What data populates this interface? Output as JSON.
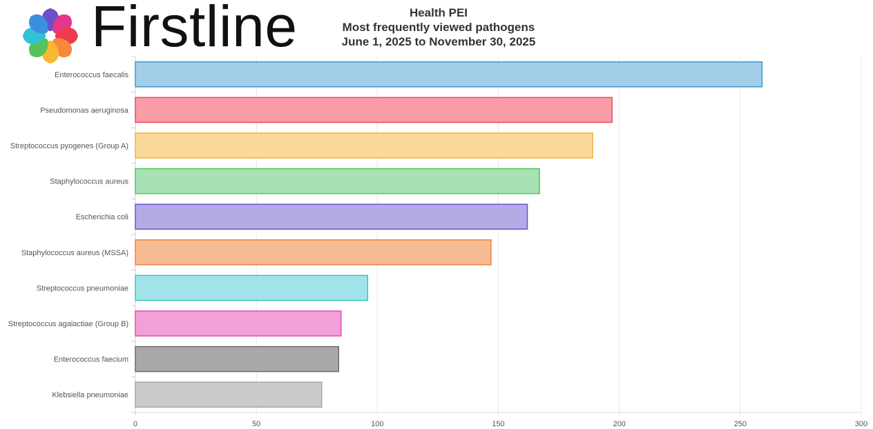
{
  "logo": {
    "text": "Firstline"
  },
  "header": {
    "org": "Health PEI",
    "title": "Most frequently viewed pathogens",
    "date_range": "June  1, 2025 to November 30, 2025"
  },
  "chart_data": {
    "type": "bar",
    "orientation": "horizontal",
    "title": "Most frequently viewed pathogens",
    "xlabel": "",
    "ylabel": "",
    "xlim": [
      0,
      300
    ],
    "xticks": [
      0,
      50,
      100,
      150,
      200,
      250,
      300
    ],
    "grid": true,
    "legend": "none",
    "categories": [
      "Enterococcus faecalis",
      "Pseudomonas aeruginosa",
      "Streptococcus pyogenes (Group A)",
      "Staphylococcus aureus",
      "Escherichia coli",
      "Staphylococcus aureus (MSSA)",
      "Streptococcus pneumoniae",
      "Streptococcus agalactiae (Group B)",
      "Enterococcus faecium",
      "Klebsiella pneumoniae"
    ],
    "values": [
      259,
      197,
      189,
      167,
      162,
      147,
      96,
      85,
      84,
      77
    ],
    "colors": [
      {
        "fill": "#a3cfea",
        "stroke": "#3b97cf"
      },
      {
        "fill": "#f89ca6",
        "stroke": "#ef4559"
      },
      {
        "fill": "#f9d898",
        "stroke": "#f2b43c"
      },
      {
        "fill": "#a8e1b3",
        "stroke": "#4ec35f"
      },
      {
        "fill": "#b4aae6",
        "stroke": "#6a55cf"
      },
      {
        "fill": "#f8bc94",
        "stroke": "#f1813c"
      },
      {
        "fill": "#a0e4ea",
        "stroke": "#36c3cd"
      },
      {
        "fill": "#f4a0d8",
        "stroke": "#e44bb2"
      },
      {
        "fill": "#a9a9a9",
        "stroke": "#6a6a6a"
      },
      {
        "fill": "#cbcbcb",
        "stroke": "#a3a3a3"
      }
    ]
  }
}
